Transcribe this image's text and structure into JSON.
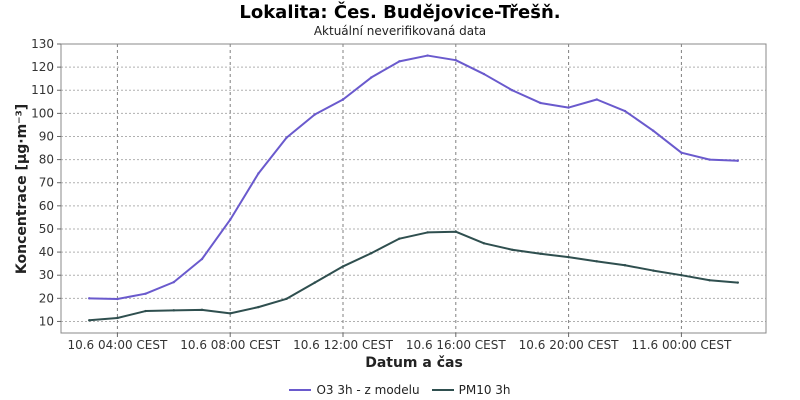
{
  "chart_data": {
    "type": "line",
    "title": "Lokalita: Čes. Budějovice-Třešň.",
    "subtitle": "Aktuální neverifikovaná data",
    "xlabel": "Datum a čas",
    "ylabel": "Koncentrace [µg·m⁻³]",
    "ylim": [
      5,
      130
    ],
    "yticks": [
      10,
      20,
      30,
      40,
      50,
      60,
      70,
      80,
      90,
      100,
      110,
      120,
      130
    ],
    "x_tick_labels": [
      "10.6 04:00 CEST",
      "10.6 08:00 CEST",
      "10.6 12:00 CEST",
      "10.6 16:00 CEST",
      "10.6 20:00 CEST",
      "11.6 00:00 CEST"
    ],
    "x_tick_hours": [
      4,
      8,
      12,
      16,
      20,
      24
    ],
    "xlim_hours": [
      2,
      27
    ],
    "grid": true,
    "legend_position": "bottom",
    "x_hours": [
      3,
      4,
      5,
      6,
      7,
      8,
      9,
      10,
      11,
      12,
      13,
      14,
      15,
      16,
      17,
      18,
      19,
      20,
      21,
      22,
      23,
      24,
      25,
      26
    ],
    "series": [
      {
        "name": "O3 3h - z modelu",
        "color": "#6a5acd",
        "values": [
          20,
          19.7,
          22,
          27,
          37,
          54,
          74,
          89.5,
          99.5,
          106,
          115.5,
          122.5,
          125,
          123,
          117,
          110,
          104.5,
          102.5,
          106,
          101,
          92.5,
          83,
          80,
          79.5
        ]
      },
      {
        "name": "PM10 3h",
        "color": "#2f4f4f",
        "values": [
          10.5,
          11.5,
          14.5,
          14.8,
          15,
          13.5,
          16.2,
          19.8,
          26.8,
          33.8,
          39.5,
          45.8,
          48.5,
          48.8,
          43.8,
          41,
          39.3,
          37.8,
          36,
          34.3,
          32,
          30,
          27.8,
          26.8
        ]
      }
    ]
  }
}
